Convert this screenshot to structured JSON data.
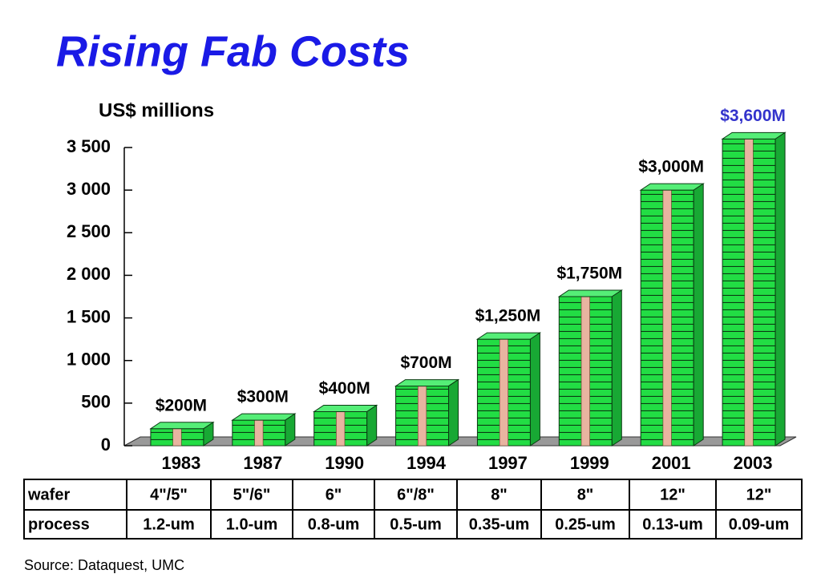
{
  "chart_data": {
    "type": "bar",
    "title": "Rising Fab Costs",
    "y_label": "US$ millions",
    "categories": [
      "1983",
      "1987",
      "1990",
      "1994",
      "1997",
      "1999",
      "2001",
      "2003"
    ],
    "values": [
      200,
      300,
      400,
      700,
      1250,
      1750,
      3000,
      3600
    ],
    "value_labels": [
      "$200M",
      "$300M",
      "$400M",
      "$700M",
      "$1,250M",
      "$1,750M",
      "$3,000M",
      "$3,600M"
    ],
    "value_label_colors": [
      "#000000",
      "#000000",
      "#000000",
      "#000000",
      "#000000",
      "#000000",
      "#000000",
      "#3333cc"
    ],
    "color": "#22cc44",
    "ylim": [
      0,
      3500
    ],
    "yticks": [
      0,
      500,
      {
        "value": 1000,
        "label": "1 000"
      },
      {
        "value": 1500,
        "label": "1 500"
      },
      {
        "value": 2000,
        "label": "2 000"
      },
      {
        "value": 2500,
        "label": "2 500"
      },
      {
        "value": 3000,
        "label": "3 000"
      },
      {
        "value": 3500,
        "label": "3 500"
      }
    ]
  },
  "table": {
    "rows": [
      [
        "wafer",
        "4\"/5\"",
        "5\"/6\"",
        "6\"",
        "6\"/8\"",
        "8\"",
        "8\"",
        "12\"",
        "12\""
      ],
      [
        "process",
        "1.2-um",
        "1.0-um",
        "0.8-um",
        "0.5-um",
        "0.35-um",
        "0.25-um",
        "0.13-um",
        "0.09-um"
      ]
    ]
  },
  "source": "Source: Dataquest, UMC"
}
